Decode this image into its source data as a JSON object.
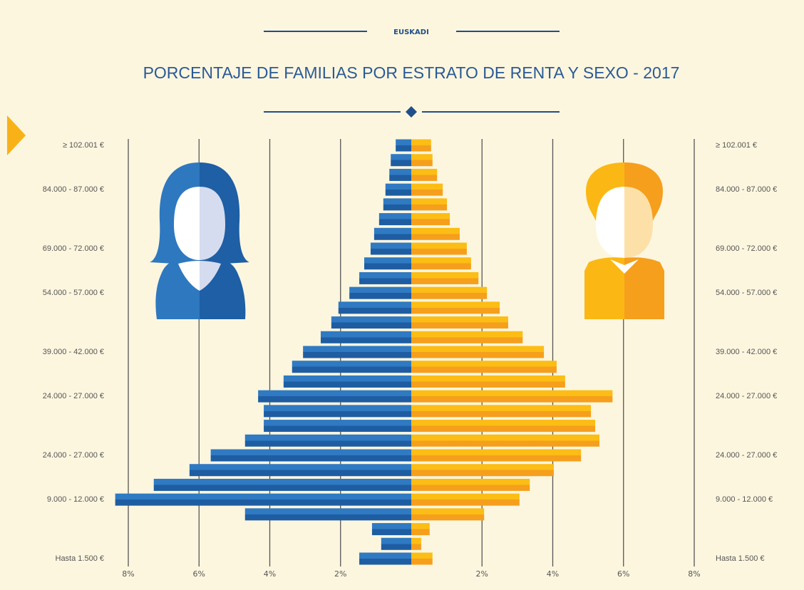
{
  "chart_data": {
    "type": "pyramid",
    "overline": "EUSKADI",
    "title": "PORCENTAJE DE FAMILIAS POR ESTRATO DE RENTA Y SEXO - 2017",
    "categories": [
      "≥ 102.001 €",
      null,
      null,
      "84.000 - 87.000 €",
      null,
      null,
      null,
      "69.000 - 72.000 €",
      null,
      null,
      "54.000 - 57.000 €",
      null,
      null,
      null,
      "39.000 - 42.000 €",
      null,
      null,
      "24.000 - 27.000 €",
      null,
      null,
      null,
      "24.000 - 27.000 €",
      null,
      null,
      "9.000 - 12.000 €",
      null,
      null,
      null,
      "Hasta 1.500 €"
    ],
    "series": [
      {
        "color": "#2a6db4",
        "side": "left",
        "values": [
          0.44,
          0.58,
          0.62,
          0.73,
          0.79,
          0.91,
          1.05,
          1.15,
          1.33,
          1.47,
          1.75,
          2.06,
          2.26,
          2.56,
          3.06,
          3.37,
          3.61,
          4.33,
          4.17,
          4.17,
          4.7,
          5.67,
          6.27,
          7.28,
          8.37,
          4.7,
          1.11,
          0.85,
          1.47
        ]
      },
      {
        "color": "#f8ae18",
        "side": "right",
        "values": [
          0.56,
          0.6,
          0.73,
          0.89,
          1.01,
          1.09,
          1.37,
          1.57,
          1.69,
          1.9,
          2.14,
          2.5,
          2.74,
          3.15,
          3.75,
          4.11,
          4.35,
          5.69,
          5.08,
          5.2,
          5.32,
          4.8,
          4.03,
          3.35,
          3.06,
          2.06,
          0.52,
          0.28,
          0.6
        ]
      }
    ],
    "xlim": [
      0,
      8
    ],
    "xticks": [
      {
        "value": 2,
        "label": "2%"
      },
      {
        "value": 4,
        "label": "4%"
      },
      {
        "value": 6,
        "label": "6%"
      },
      {
        "value": 8,
        "label": "8%"
      }
    ],
    "grid": true
  }
}
